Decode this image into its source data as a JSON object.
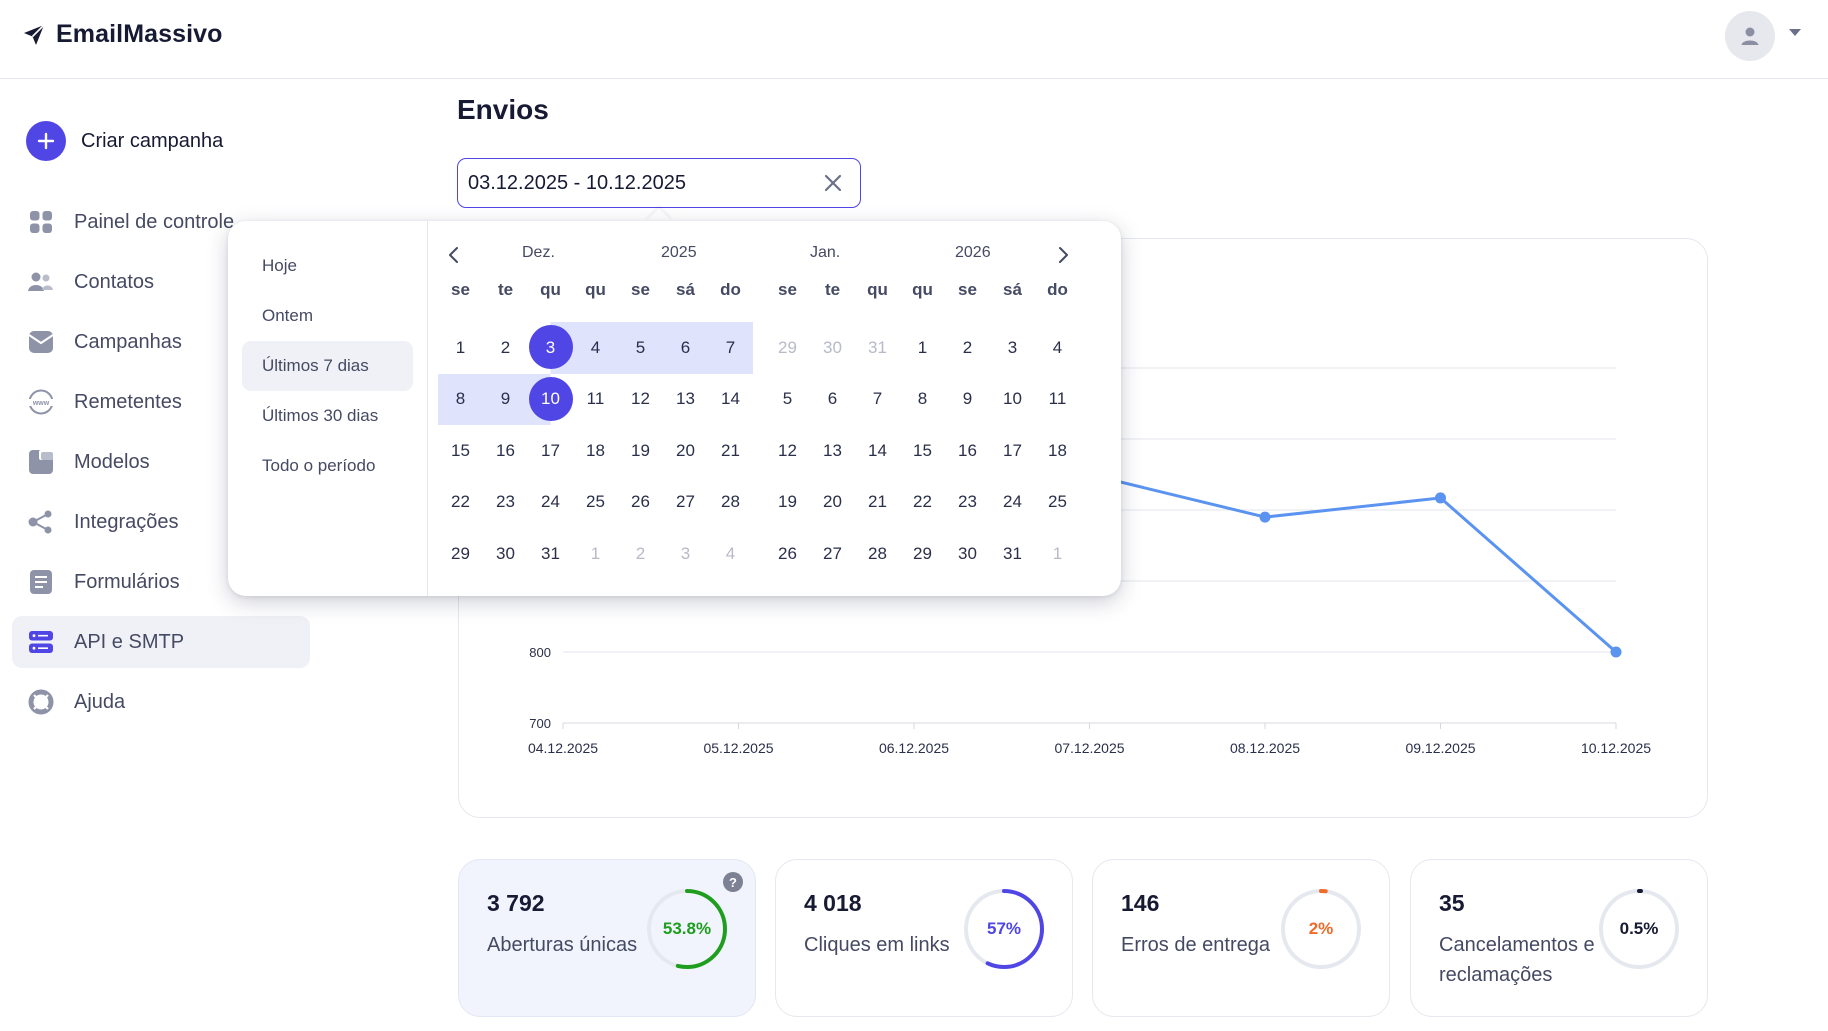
{
  "app": {
    "name": "EmailMassivo"
  },
  "sidebar": {
    "create_label": "Criar campanha",
    "items": [
      {
        "label": "Painel de controle",
        "icon": "dashboard-icon",
        "active": false
      },
      {
        "label": "Contatos",
        "icon": "contacts-icon",
        "active": false
      },
      {
        "label": "Campanhas",
        "icon": "campaigns-icon",
        "active": false
      },
      {
        "label": "Remetentes",
        "icon": "www-icon",
        "active": false
      },
      {
        "label": "Modelos",
        "icon": "templates-icon",
        "active": false
      },
      {
        "label": "Integrações",
        "icon": "integrations-icon",
        "active": false
      },
      {
        "label": "Formulários",
        "icon": "forms-icon",
        "active": false
      },
      {
        "label": "API e SMTP",
        "icon": "server-icon",
        "active": true
      },
      {
        "label": "Ajuda",
        "icon": "help-lifebuoy-icon",
        "active": false
      }
    ]
  },
  "main": {
    "title": "Envios",
    "date_range": "03.12.2025 - 10.12.2025"
  },
  "picker": {
    "presets": [
      "Hoje",
      "Ontem",
      "Últimos 7 dias",
      "Últimos 30 dias",
      "Todo o período"
    ],
    "active_preset": "Últimos 7 dias",
    "weekdays": [
      "se",
      "te",
      "qu",
      "qu",
      "se",
      "sá",
      "do"
    ],
    "left": {
      "month": "Dez.",
      "year": "2025"
    },
    "right": {
      "month": "Jan.",
      "year": "2026"
    },
    "selection": {
      "start": 3,
      "end": 10
    }
  },
  "chart_data": {
    "type": "line",
    "x": [
      "04.12.2025",
      "05.12.2025",
      "06.12.2025",
      "07.12.2025",
      "08.12.2025",
      "09.12.2025",
      "10.12.2025"
    ],
    "y_ticks": [
      700,
      800
    ],
    "ylim": [
      700,
      1300
    ],
    "series": [
      {
        "values": [
          null,
          null,
          null,
          1050,
          990,
          1017,
          800
        ]
      }
    ],
    "grid": true,
    "line_color": "#5b93f0"
  },
  "stats": [
    {
      "value": "3 792",
      "label": "Aberturas únicas",
      "percent": "53.8%",
      "fraction": 0.538,
      "color": "#1f9d1f",
      "highlight": true,
      "help": "?"
    },
    {
      "value": "4 018",
      "label": "Cliques em links",
      "percent": "57%",
      "fraction": 0.57,
      "color": "#4f46e5",
      "highlight": false
    },
    {
      "value": "146",
      "label": "Erros de entrega",
      "percent": "2%",
      "fraction": 0.02,
      "color": "#f06a2a",
      "highlight": false
    },
    {
      "value": "35",
      "label": "Cancelamentos e reclamações",
      "percent": "0.5%",
      "fraction": 0.005,
      "color": "#161a33",
      "highlight": false
    }
  ]
}
